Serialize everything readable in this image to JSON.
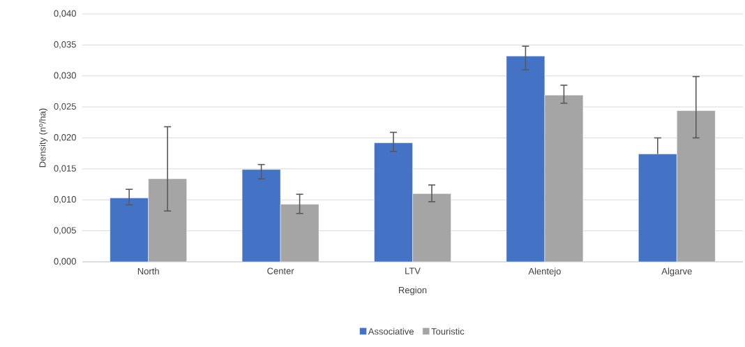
{
  "chart_data": {
    "type": "bar",
    "xlabel": "Region",
    "ylabel": "Density (nº/ha)",
    "categories": [
      "North",
      "Center",
      "LTV",
      "Alentejo",
      "Algarve"
    ],
    "series": [
      {
        "name": "Associative",
        "color": "#4472c4",
        "values": [
          0.0103,
          0.0149,
          0.0192,
          0.0332,
          0.0174
        ],
        "errors": [
          [
            0.0092,
            0.0117
          ],
          [
            0.0134,
            0.0157
          ],
          [
            0.0178,
            0.0209
          ],
          [
            0.031,
            0.0348
          ],
          [
            0.0174,
            0.02
          ]
        ]
      },
      {
        "name": "Touristic",
        "color": "#a5a5a5",
        "values": [
          0.0134,
          0.0093,
          0.011,
          0.0269,
          0.0244
        ],
        "errors": [
          [
            0.0082,
            0.0218
          ],
          [
            0.0078,
            0.0109
          ],
          [
            0.0097,
            0.0124
          ],
          [
            0.0256,
            0.0285
          ],
          [
            0.02,
            0.0299
          ]
        ]
      }
    ],
    "ylim": [
      0,
      0.04
    ],
    "yticks": [
      {
        "value": 0,
        "label": "0,000"
      },
      {
        "value": 0.005,
        "label": "0,005"
      },
      {
        "value": 0.01,
        "label": "0,010"
      },
      {
        "value": 0.015,
        "label": "0,015"
      },
      {
        "value": 0.02,
        "label": "0,020"
      },
      {
        "value": 0.025,
        "label": "0,025"
      },
      {
        "value": 0.03,
        "label": "0,030"
      },
      {
        "value": 0.035,
        "label": "0,035"
      },
      {
        "value": 0.04,
        "label": "0,040"
      }
    ],
    "grid": "y",
    "legend": "bottom"
  }
}
